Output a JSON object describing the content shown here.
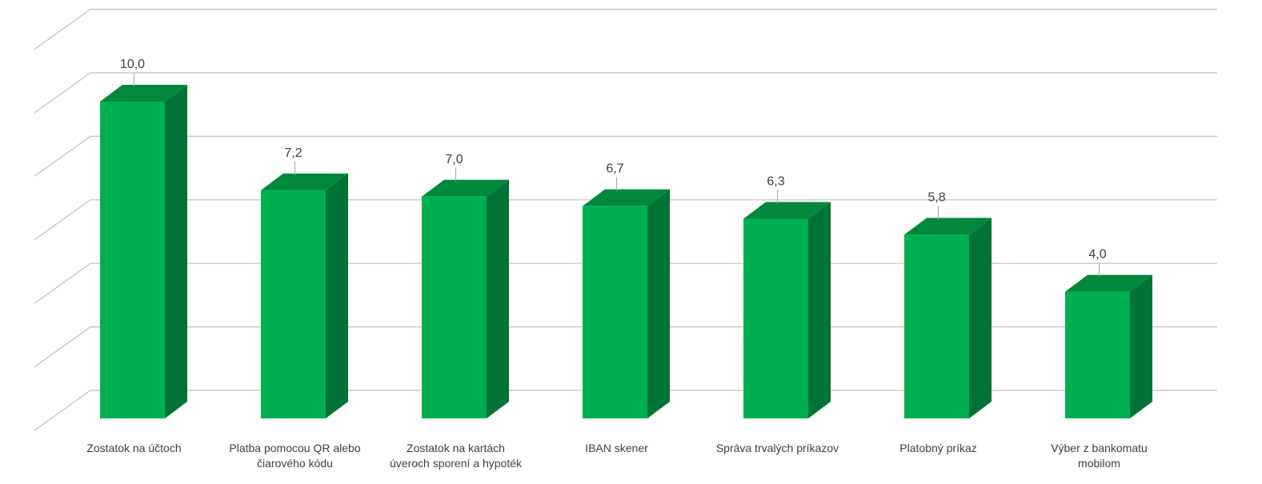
{
  "chart_data": {
    "type": "bar",
    "categories": [
      [
        "Zostatok na účtoch"
      ],
      [
        "Platba pomocou QR alebo",
        "čiarového kódu"
      ],
      [
        "Zostatok na kartách",
        "úveroch sporení a hypoték"
      ],
      [
        "IBAN skener"
      ],
      [
        "Správa trvalých príkazov"
      ],
      [
        "Platobný príkaz"
      ],
      [
        "Výber z bankomatu",
        "mobilom"
      ]
    ],
    "values": [
      10.0,
      7.2,
      7.0,
      6.7,
      6.3,
      5.8,
      4.0
    ],
    "value_labels": [
      "10,0",
      "7,2",
      "7,0",
      "6,7",
      "6,3",
      "5,8",
      "4,0"
    ],
    "ylim": [
      0,
      12
    ],
    "grid": true,
    "legend": "none",
    "three_d": true,
    "colors": {
      "front": "#00b050",
      "side": "#007336",
      "top": "#00883d",
      "grid": "#bfbfbf",
      "text": "#404040"
    }
  }
}
